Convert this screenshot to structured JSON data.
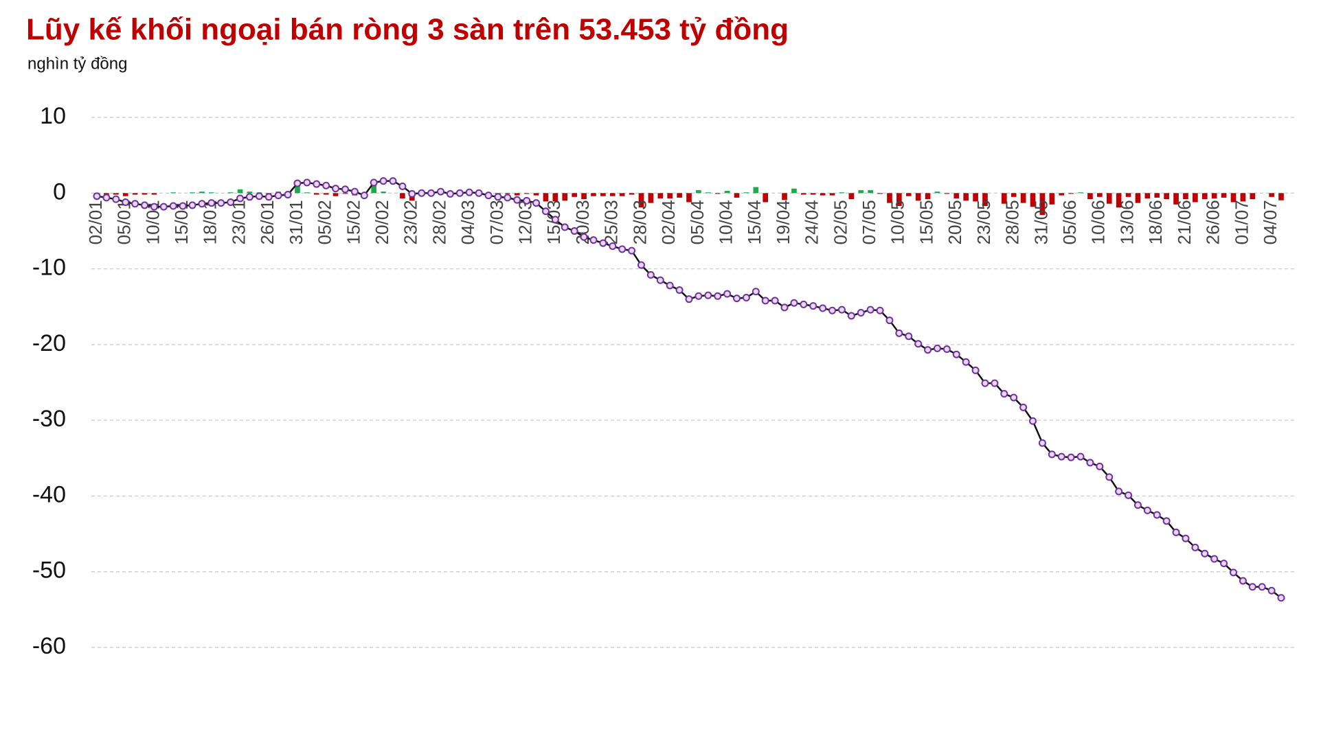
{
  "chart_data": {
    "type": "line-bar",
    "title": "Lũy kế khối ngoại bán ròng 3 sàn trên 53.453 tỷ đồng",
    "y_label": "nghìn tỷ đồng",
    "categories": [
      "02/01",
      null,
      null,
      "05/01",
      null,
      null,
      "10/01",
      null,
      null,
      "15/01",
      null,
      null,
      "18/01",
      null,
      null,
      "23/01",
      null,
      null,
      "26/01",
      null,
      null,
      "31/01",
      null,
      null,
      "05/02",
      null,
      null,
      "15/02",
      null,
      null,
      "20/02",
      null,
      null,
      "23/02",
      null,
      null,
      "28/02",
      null,
      null,
      "04/03",
      null,
      null,
      "07/03",
      null,
      null,
      "12/03",
      null,
      null,
      "15/03",
      null,
      null,
      "20/03",
      null,
      null,
      "25/03",
      null,
      null,
      "28/03",
      null,
      null,
      "02/04",
      null,
      null,
      "05/04",
      null,
      null,
      "10/04",
      null,
      null,
      "15/04",
      null,
      null,
      "19/04",
      null,
      null,
      "24/04",
      null,
      null,
      "02/05",
      null,
      null,
      "07/05",
      null,
      null,
      "10/05",
      null,
      null,
      "15/05",
      null,
      null,
      "20/05",
      null,
      null,
      "23/05",
      null,
      null,
      "28/05",
      null,
      null,
      "31/05",
      null,
      null,
      "05/06",
      null,
      null,
      "10/06",
      null,
      null,
      "13/06",
      null,
      null,
      "18/06",
      null,
      null,
      "21/06",
      null,
      null,
      "26/06",
      null,
      null,
      "01/07",
      null,
      null,
      "04/07",
      null
    ],
    "line": {
      "color": "#111111",
      "marker_color": "#7030a0",
      "marker_fill": "#e6d8f2",
      "values": [
        -0.4,
        -0.6,
        -0.8,
        -1.2,
        -1.4,
        -1.6,
        -1.8,
        -1.8,
        -1.7,
        -1.7,
        -1.6,
        -1.4,
        -1.3,
        -1.3,
        -1.2,
        -0.7,
        -0.5,
        -0.4,
        -0.5,
        -0.3,
        -0.2,
        1.3,
        1.4,
        1.2,
        1.0,
        0.6,
        0.5,
        0.2,
        -0.3,
        1.4,
        1.6,
        1.6,
        0.9,
        -0.1,
        0.0,
        0.0,
        0.2,
        -0.1,
        0.0,
        0.1,
        0.0,
        -0.3,
        -0.5,
        -0.6,
        -0.9,
        -1.0,
        -1.3,
        -2.4,
        -3.5,
        -4.5,
        -5.0,
        -5.8,
        -6.2,
        -6.6,
        -7.0,
        -7.4,
        -7.6,
        -9.5,
        -10.8,
        -11.5,
        -12.2,
        -12.8,
        -14.0,
        -13.6,
        -13.5,
        -13.6,
        -13.3,
        -13.9,
        -13.8,
        -13.0,
        -14.2,
        -14.2,
        -15.1,
        -14.5,
        -14.7,
        -14.9,
        -15.2,
        -15.5,
        -15.4,
        -16.2,
        -15.8,
        -15.4,
        -15.5,
        -16.8,
        -18.5,
        -18.9,
        -19.9,
        -20.7,
        -20.5,
        -20.6,
        -21.3,
        -22.3,
        -23.4,
        -25.1,
        -25.1,
        -26.5,
        -27.0,
        -28.3,
        -30.1,
        -33.0,
        -34.5,
        -34.8,
        -34.9,
        -34.8,
        -35.6,
        -36.1,
        -37.5,
        -39.4,
        -39.9,
        -41.2,
        -41.9,
        -42.5,
        -43.3,
        -44.8,
        -45.6,
        -46.8,
        -47.6,
        -48.3,
        -48.9,
        -50.1,
        -51.2,
        -52.0,
        -52.0,
        -52.5,
        -53.45
      ]
    },
    "bars": {
      "positive_color": "#22a84a",
      "negative_color": "#c00000",
      "values": [
        -0.4,
        -0.2,
        -0.2,
        -0.4,
        -0.2,
        -0.2,
        -0.2,
        0,
        0.1,
        0,
        0.1,
        0.2,
        0.1,
        0,
        0.1,
        0.5,
        0.2,
        0.1,
        -0.1,
        0.2,
        0.1,
        1.5,
        0.1,
        -0.2,
        -0.2,
        -0.4,
        -0.1,
        -0.3,
        -0.5,
        1.7,
        0.2,
        0,
        -0.7,
        -1.0,
        0.1,
        0,
        0.2,
        -0.3,
        0.1,
        0.1,
        -0.1,
        -0.3,
        -0.2,
        -0.1,
        -0.3,
        -0.1,
        -0.3,
        -1.1,
        -1.1,
        -1.0,
        -0.5,
        -0.8,
        -0.4,
        -0.4,
        -0.4,
        -0.4,
        -0.2,
        -1.9,
        -1.3,
        -0.7,
        -0.7,
        -0.6,
        -1.2,
        0.4,
        0.1,
        -0.1,
        0.3,
        -0.6,
        0.1,
        0.8,
        -1.2,
        0,
        -0.9,
        0.6,
        -0.2,
        -0.2,
        -0.3,
        -0.3,
        0.1,
        -0.8,
        0.4,
        0.4,
        -0.1,
        -1.3,
        -1.7,
        -0.4,
        -1.0,
        -0.8,
        0.2,
        -0.1,
        -0.7,
        -1.0,
        -1.1,
        -1.7,
        0,
        -1.4,
        -0.5,
        -1.3,
        -1.8,
        -2.9,
        -1.5,
        -0.3,
        -0.1,
        0.1,
        -0.8,
        -0.5,
        -1.4,
        -1.9,
        -0.5,
        -1.3,
        -0.7,
        -0.6,
        -0.8,
        -1.5,
        -0.8,
        -1.2,
        -0.8,
        -0.7,
        -0.6,
        -1.2,
        -1.1,
        -0.8,
        0,
        -0.5,
        -0.95
      ]
    },
    "ylim": [
      -60,
      10
    ],
    "yticks": [
      10,
      0,
      -10,
      -20,
      -30,
      -40,
      -50,
      -60
    ],
    "grid": true
  }
}
